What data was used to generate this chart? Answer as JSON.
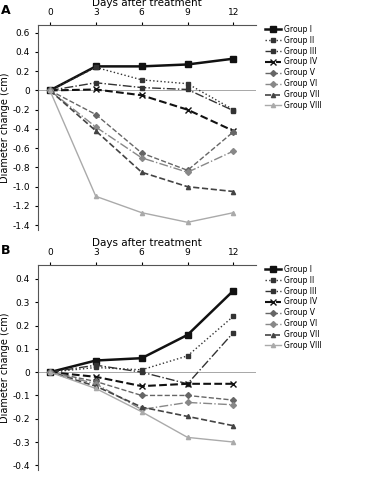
{
  "days": [
    0,
    3,
    6,
    9,
    12
  ],
  "panel_A": {
    "title": "Days after treatment",
    "ylabel": "Diameter change (cm)",
    "ylim": [
      -1.45,
      0.68
    ],
    "yticks": [
      -1.4,
      -1.2,
      -1.0,
      -0.8,
      -0.6,
      -0.4,
      -0.2,
      0.0,
      0.2,
      0.4,
      0.6
    ],
    "groups": {
      "Group I": [
        0,
        0.25,
        0.25,
        0.27,
        0.33
      ],
      "Group II": [
        0,
        0.24,
        0.11,
        0.07,
        -0.2
      ],
      "Group III": [
        0,
        0.08,
        0.03,
        0.01,
        -0.21
      ],
      "Group IV": [
        0,
        0.01,
        -0.05,
        -0.2,
        -0.42
      ],
      "Group V": [
        0,
        -0.25,
        -0.65,
        -0.83,
        -0.43
      ],
      "Group VI": [
        0,
        -0.38,
        -0.7,
        -0.85,
        -0.63
      ],
      "Group VII": [
        0,
        -0.42,
        -0.85,
        -1.0,
        -1.05
      ],
      "Group VIII": [
        0,
        -1.1,
        -1.27,
        -1.37,
        -1.27
      ]
    }
  },
  "panel_B": {
    "title": "Days after treatment",
    "ylabel": "Diameter change (cm)",
    "ylim": [
      -0.42,
      0.46
    ],
    "yticks": [
      -0.4,
      -0.3,
      -0.2,
      -0.1,
      0.0,
      0.1,
      0.2,
      0.3,
      0.4
    ],
    "groups": {
      "Group I": [
        0,
        0.05,
        0.06,
        0.16,
        0.35
      ],
      "Group II": [
        0,
        0.02,
        0.01,
        0.07,
        0.24
      ],
      "Group III": [
        0,
        0.03,
        0.0,
        -0.05,
        0.17
      ],
      "Group IV": [
        0,
        -0.02,
        -0.06,
        -0.05,
        -0.05
      ],
      "Group V": [
        0,
        -0.04,
        -0.1,
        -0.1,
        -0.12
      ],
      "Group VI": [
        0,
        -0.05,
        -0.16,
        -0.13,
        -0.14
      ],
      "Group VII": [
        0,
        -0.06,
        -0.15,
        -0.19,
        -0.23
      ],
      "Group VIII": [
        0,
        -0.07,
        -0.17,
        -0.28,
        -0.3
      ]
    }
  },
  "groups": {
    "Group I": {
      "color": "#111111",
      "linestyle": "solid",
      "marker": "s",
      "markersize": 4,
      "linewidth": 1.8
    },
    "Group II": {
      "color": "#333333",
      "linestyle": "dotted",
      "marker": "s",
      "markersize": 3,
      "linewidth": 1.0
    },
    "Group III": {
      "color": "#333333",
      "linestyle": "dashdot",
      "marker": "s",
      "markersize": 3,
      "linewidth": 1.0
    },
    "Group IV": {
      "color": "#111111",
      "linestyle": "dashed",
      "marker": "x",
      "markersize": 4,
      "linewidth": 1.5
    },
    "Group V": {
      "color": "#666666",
      "linestyle": "dashed",
      "marker": "D",
      "markersize": 3,
      "linewidth": 1.0
    },
    "Group VI": {
      "color": "#888888",
      "linestyle": "dashdot",
      "marker": "D",
      "markersize": 3,
      "linewidth": 1.0
    },
    "Group VII": {
      "color": "#444444",
      "linestyle": "dashed",
      "marker": "^",
      "markersize": 3,
      "linewidth": 1.2
    },
    "Group VIII": {
      "color": "#aaaaaa",
      "linestyle": "solid",
      "marker": "^",
      "markersize": 3,
      "linewidth": 1.0
    }
  },
  "legend_labels": [
    "Group I",
    "Group II",
    "Group III",
    "Group IV",
    "Group V",
    "Group VI",
    "Group VII",
    "Group VIII"
  ],
  "panel_labels": [
    "A",
    "B"
  ]
}
